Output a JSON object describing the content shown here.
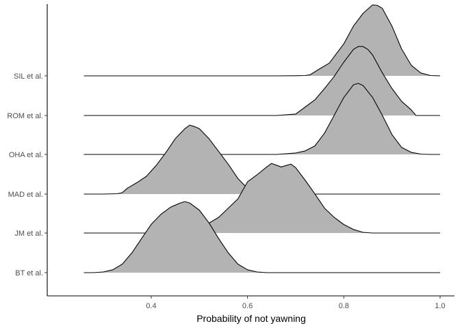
{
  "chart_data": {
    "type": "ridgeline",
    "title": "",
    "xlabel": "Probability of not yawning",
    "ylabel": "",
    "xlim": [
      0.184,
      1.03
    ],
    "x_ticks": [
      0.4,
      0.6,
      0.8,
      1.0
    ],
    "x_tick_labels": [
      "0.4",
      "0.6",
      "0.8",
      "1.0"
    ],
    "categories": [
      "BT et al.",
      "JM et al.",
      "MAD et al.",
      "OHA et al.",
      "ROM et al.",
      "SIL et al."
    ],
    "grid": false,
    "legend": "none",
    "fill_color": "#b3b3b3",
    "line_color": "#000000",
    "x_range": [
      0.26,
      1.0
    ],
    "series": [
      {
        "name": "SIL et al.",
        "x": [
          0.26,
          0.4,
          0.6,
          0.66,
          0.7,
          0.72,
          0.73,
          0.75,
          0.77,
          0.8,
          0.82,
          0.84,
          0.86,
          0.87,
          0.88,
          0.9,
          0.92,
          0.94,
          0.96,
          0.98,
          1.0
        ],
        "y": [
          0,
          0,
          0,
          0,
          0.002,
          0.005,
          0.015,
          0.1,
          0.18,
          0.45,
          0.7,
          0.88,
          1.0,
          0.99,
          0.95,
          0.7,
          0.38,
          0.15,
          0.04,
          0.005,
          0
        ]
      },
      {
        "name": "ROM et al.",
        "x": [
          0.26,
          0.4,
          0.6,
          0.66,
          0.7,
          0.72,
          0.74,
          0.76,
          0.78,
          0.8,
          0.82,
          0.83,
          0.84,
          0.85,
          0.86,
          0.88,
          0.9,
          0.92,
          0.94,
          0.95,
          1.0
        ],
        "y": [
          0,
          0,
          0,
          0,
          0.02,
          0.12,
          0.22,
          0.38,
          0.55,
          0.75,
          0.93,
          0.97,
          0.97,
          0.93,
          0.85,
          0.6,
          0.38,
          0.2,
          0.08,
          0,
          0
        ]
      },
      {
        "name": "OHA et al.",
        "x": [
          0.26,
          0.4,
          0.6,
          0.66,
          0.7,
          0.72,
          0.74,
          0.76,
          0.78,
          0.8,
          0.82,
          0.83,
          0.84,
          0.86,
          0.88,
          0.9,
          0.92,
          0.94,
          0.96,
          0.98,
          1.0
        ],
        "y": [
          0,
          0,
          0,
          0,
          0.02,
          0.05,
          0.12,
          0.3,
          0.55,
          0.8,
          0.98,
          1.0,
          0.97,
          0.8,
          0.55,
          0.28,
          0.1,
          0.03,
          0.005,
          0,
          0
        ]
      },
      {
        "name": "MAD et al.",
        "x": [
          0.26,
          0.3,
          0.33,
          0.34,
          0.35,
          0.37,
          0.39,
          0.41,
          0.43,
          0.45,
          0.47,
          0.48,
          0.49,
          0.5,
          0.52,
          0.54,
          0.56,
          0.58,
          0.6,
          0.62,
          0.66,
          0.7,
          1.0
        ],
        "y": [
          0,
          0,
          0.005,
          0.02,
          0.08,
          0.16,
          0.25,
          0.4,
          0.58,
          0.78,
          0.92,
          0.97,
          0.95,
          0.92,
          0.78,
          0.6,
          0.42,
          0.22,
          0.08,
          0.02,
          0,
          0,
          0
        ]
      },
      {
        "name": "JM et al.",
        "x": [
          0.26,
          0.4,
          0.45,
          0.5,
          0.54,
          0.58,
          0.6,
          0.62,
          0.64,
          0.65,
          0.67,
          0.69,
          0.7,
          0.72,
          0.74,
          0.76,
          0.78,
          0.8,
          0.82,
          0.84,
          0.86,
          0.9,
          1.0
        ],
        "y": [
          0,
          0,
          0.01,
          0.06,
          0.22,
          0.48,
          0.72,
          0.82,
          0.93,
          0.98,
          0.93,
          0.97,
          0.92,
          0.74,
          0.55,
          0.35,
          0.22,
          0.12,
          0.05,
          0.01,
          0,
          0,
          0
        ]
      },
      {
        "name": "BT et al.",
        "x": [
          0.26,
          0.28,
          0.3,
          0.32,
          0.34,
          0.36,
          0.38,
          0.4,
          0.42,
          0.44,
          0.46,
          0.47,
          0.48,
          0.5,
          0.52,
          0.54,
          0.56,
          0.58,
          0.6,
          0.62,
          0.64,
          0.7,
          1.0
        ],
        "y": [
          0,
          0,
          0.01,
          0.04,
          0.12,
          0.28,
          0.48,
          0.68,
          0.82,
          0.92,
          0.98,
          1.0,
          0.98,
          0.88,
          0.7,
          0.48,
          0.28,
          0.12,
          0.04,
          0.01,
          0,
          0,
          0
        ]
      }
    ]
  }
}
